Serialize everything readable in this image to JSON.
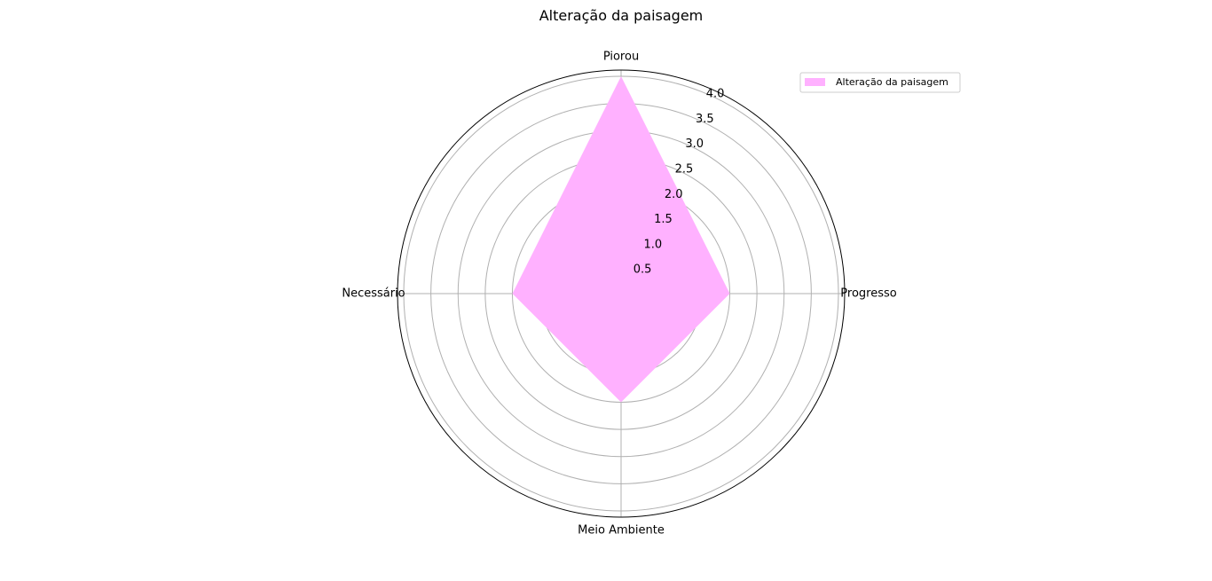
{
  "chart_data": {
    "type": "radar",
    "title": "Alteração da paisagem",
    "categories": [
      "Progresso",
      "Piorou",
      "Necessário",
      "Meio Ambiente"
    ],
    "series": [
      {
        "name": "Alteração da paisagem",
        "values": [
          2.0,
          4.0,
          2.0,
          2.0
        ],
        "color": "#ffb1ff"
      }
    ],
    "rlim": [
      0,
      4.0
    ],
    "rticks": [
      "0.5",
      "1.0",
      "1.5",
      "2.0",
      "2.5",
      "3.0",
      "3.5",
      "4.0"
    ],
    "grid": true,
    "legend_position": "top-right"
  }
}
